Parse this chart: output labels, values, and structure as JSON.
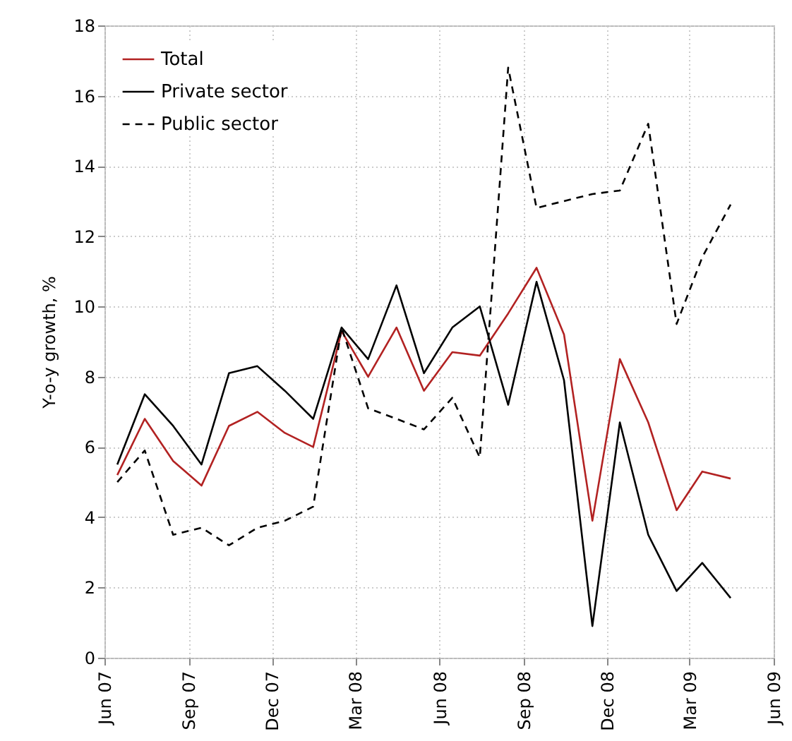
{
  "chart_data": {
    "type": "line",
    "ylabel": "Y-o-y growth, %",
    "x": [
      "2007-06-15",
      "2007-07-15",
      "2007-08-15",
      "2007-09-15",
      "2007-10-15",
      "2007-11-15",
      "2007-12-15",
      "2008-01-15",
      "2008-02-15",
      "2008-03-15",
      "2008-04-15",
      "2008-05-15",
      "2008-06-15",
      "2008-07-15",
      "2008-08-15",
      "2008-09-15",
      "2008-10-15",
      "2008-11-15",
      "2008-12-15",
      "2009-01-15",
      "2009-02-15",
      "2009-03-15",
      "2009-04-15"
    ],
    "series": [
      {
        "name": "Total",
        "color": "#b22222",
        "values": [
          5.2,
          6.8,
          5.6,
          4.9,
          6.6,
          7.0,
          6.4,
          6.0,
          9.3,
          8.0,
          9.4,
          7.6,
          8.7,
          8.6,
          9.8,
          11.1,
          9.2,
          3.9,
          8.5,
          6.7,
          4.2,
          5.3,
          5.1
        ]
      },
      {
        "name": "Private sector",
        "color": "#000000",
        "values": [
          5.5,
          7.5,
          6.6,
          5.5,
          8.1,
          8.3,
          7.6,
          6.8,
          9.4,
          8.5,
          10.6,
          8.1,
          9.4,
          10.0,
          7.2,
          10.7,
          7.9,
          0.9,
          6.7,
          3.5,
          1.9,
          2.7,
          1.7
        ]
      },
      {
        "name": "Public sector",
        "color": "#000000",
        "line_style": "dashed",
        "values": [
          5.0,
          5.9,
          3.5,
          3.7,
          3.2,
          3.7,
          3.9,
          4.3,
          9.4,
          7.1,
          6.8,
          6.5,
          7.4,
          5.7,
          16.8,
          12.8,
          13.0,
          13.2,
          13.3,
          15.2,
          9.5,
          11.4,
          12.9
        ]
      }
    ],
    "xlim": [
      "2007-06",
      "2009-06"
    ],
    "xticks": [
      {
        "value": "2007-06",
        "label": "Jun 07"
      },
      {
        "value": "2007-09",
        "label": "Sep 07"
      },
      {
        "value": "2007-12",
        "label": "Dec 07"
      },
      {
        "value": "2008-03",
        "label": "Mar 08"
      },
      {
        "value": "2008-06",
        "label": "Jun 08"
      },
      {
        "value": "2008-09",
        "label": "Sep 08"
      },
      {
        "value": "2008-12",
        "label": "Dec 08"
      },
      {
        "value": "2009-03",
        "label": "Mar 09"
      },
      {
        "value": "2009-06",
        "label": "Jun 09"
      }
    ],
    "ylim": [
      0,
      18
    ],
    "yticks": [
      0,
      2,
      4,
      6,
      8,
      10,
      12,
      14,
      16,
      18
    ],
    "grid": true,
    "legend": "top left",
    "marker": "none",
    "line_style": "solid"
  }
}
